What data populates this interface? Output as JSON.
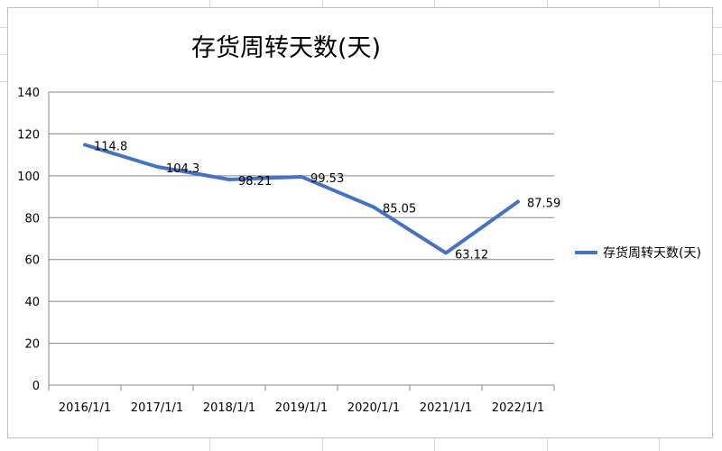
{
  "chart_data": {
    "type": "line",
    "title": "存货周转天数(天)",
    "xlabel": "",
    "ylabel": "",
    "categories": [
      "2016/1/1",
      "2017/1/1",
      "2018/1/1",
      "2019/1/1",
      "2020/1/1",
      "2021/1/1",
      "2022/1/1"
    ],
    "series": [
      {
        "name": "存货周转天数(天)",
        "values": [
          114.8,
          104.3,
          98.21,
          99.53,
          85.05,
          63.12,
          87.59
        ],
        "labels": [
          "114.8",
          "104.3",
          "98.21",
          "99.53",
          "85.05",
          "63.12",
          "87.59"
        ],
        "color": "#4472C4"
      }
    ],
    "ylim": [
      0,
      140
    ],
    "yticks": [
      0,
      20,
      40,
      60,
      80,
      100,
      120,
      140
    ],
    "grid": true,
    "legend_position": "right",
    "gridline_color": "#878787",
    "axis_color": "#878787"
  }
}
